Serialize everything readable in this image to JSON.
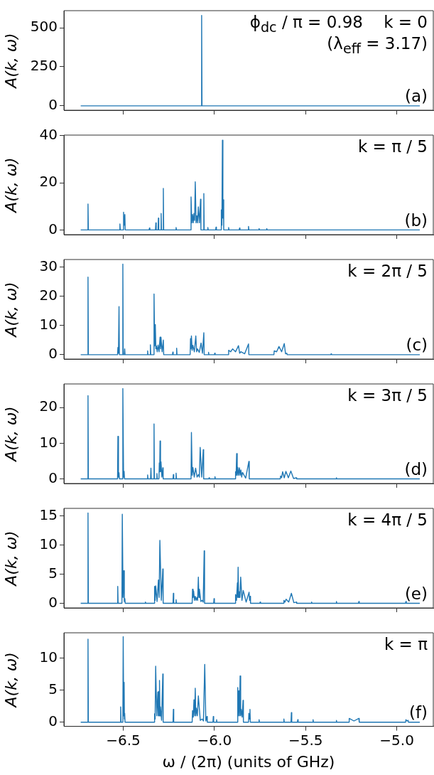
{
  "chart_data": [
    {
      "type": "line",
      "ylabel": "A(k, ω)",
      "annotations": [
        "ϕ$_{dc}$ / π = 0.98    k = 0",
        "(λ$_{eff}$ = 3.17)",
        "(a)"
      ],
      "xlim": [
        -6.825,
        -4.8
      ],
      "xticks": [
        {
          "value": -6.5,
          "label": null
        },
        {
          "value": -6.0,
          "label": null
        },
        {
          "value": -5.5,
          "label": null
        },
        {
          "value": -5.0,
          "label": null
        }
      ],
      "ylim": [
        -28,
        610
      ],
      "yticks": [
        0,
        250,
        500
      ],
      "tick_labels": "y",
      "grid": false,
      "legend": false,
      "marker": "none",
      "line_style": "solid",
      "series": [
        {
          "color": "#1f77b4",
          "x": [
            -6.733,
            -6.072,
            -6.07,
            -6.068,
            -4.874
          ],
          "values": [
            0,
            0,
            580,
            0,
            0
          ]
        }
      ]
    },
    {
      "type": "line",
      "ylabel": "A(k, ω)",
      "annotations": [
        "k = π / 5",
        "(b)"
      ],
      "xlim": [
        -6.825,
        -4.8
      ],
      "xticks": [
        {
          "value": -6.5,
          "label": null
        },
        {
          "value": -6.0,
          "label": null
        },
        {
          "value": -5.5,
          "label": null
        },
        {
          "value": -5.0,
          "label": null
        }
      ],
      "ylim": [
        -2,
        40.2
      ],
      "yticks": [
        0,
        20,
        40
      ],
      "tick_labels": "y",
      "grid": false,
      "legend": false,
      "marker": "none",
      "line_style": "solid",
      "series": [
        {
          "color": "#1f77b4",
          "x": [
            -6.733,
            -6.695,
            -6.693,
            -6.691,
            -6.52,
            -6.518,
            -6.516,
            -6.5,
            -6.498,
            -6.4945,
            -6.491,
            -6.489,
            -6.358,
            -6.356,
            -6.354,
            -6.323,
            -6.321,
            -6.319,
            -6.309,
            -6.307,
            -6.305,
            -6.294,
            -6.292,
            -6.29,
            -6.282,
            -6.28,
            -6.278,
            -6.212,
            -6.21,
            -6.208,
            -6.13,
            -6.128,
            -6.124,
            -6.12,
            -6.116,
            -6.112,
            -6.1085,
            -6.105,
            -6.1005,
            -6.096,
            -6.092,
            -6.088,
            -6.082,
            -6.076,
            -6.074,
            -6.06,
            -6.058,
            -6.056,
            -6.038,
            -6.036,
            -6.034,
            -5.993,
            -5.991,
            -5.989,
            -5.964,
            -5.962,
            -5.959,
            -5.956,
            -5.9535,
            -5.951,
            -5.949,
            -5.924,
            -5.922,
            -5.92,
            -5.864,
            -5.862,
            -5.86,
            -5.815,
            -5.813,
            -5.811,
            -5.757,
            -5.755,
            -5.753,
            -5.715,
            -5.713,
            -5.711,
            -4.874
          ],
          "values": [
            0,
            0,
            11,
            0,
            0,
            2.5,
            0,
            0,
            7.5,
            2,
            6.5,
            0,
            0,
            0.8,
            0,
            0,
            3,
            0,
            0,
            5,
            0,
            0,
            7,
            0,
            0,
            17.6,
            0,
            0,
            1,
            0,
            0,
            14,
            3,
            6.5,
            3,
            7,
            4,
            20.4,
            3,
            6,
            3,
            9.8,
            3,
            13,
            0,
            0,
            15.4,
            0,
            0,
            1,
            0,
            0,
            1.2,
            0,
            0,
            8.5,
            2,
            38,
            5,
            12.8,
            0,
            0,
            1,
            0,
            0,
            0.8,
            0,
            0,
            1.5,
            0,
            0,
            0.6,
            0,
            0,
            0.6,
            0,
            0
          ]
        }
      ]
    },
    {
      "type": "line",
      "ylabel": "A(k, ω)",
      "annotations": [
        "k = 2π / 5",
        "(c)"
      ],
      "xlim": [
        -6.825,
        -4.8
      ],
      "xticks": [
        {
          "value": -6.5,
          "label": null
        },
        {
          "value": -6.0,
          "label": null
        },
        {
          "value": -5.5,
          "label": null
        },
        {
          "value": -5.0,
          "label": null
        }
      ],
      "ylim": [
        -1.5,
        32.6
      ],
      "yticks": [
        0,
        10,
        20,
        30
      ],
      "tick_labels": "y",
      "grid": false,
      "legend": false,
      "marker": "none",
      "line_style": "solid",
      "series": [
        {
          "color": "#1f77b4",
          "x": [
            -6.733,
            -6.695,
            -6.693,
            -6.691,
            -6.531,
            -6.529,
            -6.526,
            -6.523,
            -6.521,
            -6.504,
            -6.502,
            -6.5,
            -6.494,
            -6.492,
            -6.49,
            -6.368,
            -6.366,
            -6.364,
            -6.353,
            -6.351,
            -6.349,
            -6.333,
            -6.331,
            -6.3275,
            -6.324,
            -6.321,
            -6.318,
            -6.3135,
            -6.309,
            -6.3035,
            -6.298,
            -6.2955,
            -6.293,
            -6.2865,
            -6.28,
            -6.278,
            -6.23,
            -6.228,
            -6.226,
            -6.209,
            -6.207,
            -6.205,
            -6.133,
            -6.131,
            -6.1285,
            -6.126,
            -6.122,
            -6.118,
            -6.11,
            -6.102,
            -6.0975,
            -6.093,
            -6.083,
            -6.073,
            -6.0655,
            -6.058,
            -6.056,
            -6.034,
            -6.032,
            -6.03,
            -6.0,
            -5.998,
            -5.996,
            -5.924,
            -5.922,
            -5.911,
            -5.9,
            -5.884,
            -5.868,
            -5.8615,
            -5.855,
            -5.834,
            -5.813,
            -5.811,
            -5.674,
            -5.672,
            -5.659,
            -5.646,
            -5.6315,
            -5.617,
            -5.61,
            -5.603,
            -5.601,
            -5.362,
            -5.36,
            -5.358,
            -4.874
          ],
          "values": [
            0,
            0,
            26.6,
            0,
            0,
            2.5,
            0.5,
            16.5,
            0,
            0,
            31,
            0,
            0,
            2,
            0,
            0,
            1.3,
            0,
            0,
            3.4,
            0,
            0,
            20.8,
            3,
            10.3,
            2,
            3,
            1,
            3.3,
            1,
            6,
            2,
            6,
            1,
            5,
            0,
            0,
            0.9,
            0,
            0,
            2.2,
            0,
            0,
            5.5,
            2,
            6.4,
            1.5,
            3.2,
            1,
            6.4,
            1,
            2,
            0.8,
            4,
            0.5,
            7.5,
            0,
            0,
            0.8,
            0,
            0,
            0.5,
            0,
            0,
            1.5,
            1,
            2,
            1,
            3.1,
            0.5,
            1,
            0.3,
            3.7,
            0,
            0,
            1.3,
            1,
            2.8,
            1,
            3.8,
            0.3,
            0.5,
            0,
            0,
            0.3,
            0,
            0
          ]
        }
      ]
    },
    {
      "type": "line",
      "ylabel": "A(k, ω)",
      "annotations": [
        "k = 3π / 5",
        "(d)"
      ],
      "xlim": [
        -6.825,
        -4.8
      ],
      "xticks": [
        {
          "value": -6.5,
          "label": null
        },
        {
          "value": -6.0,
          "label": null
        },
        {
          "value": -5.5,
          "label": null
        },
        {
          "value": -5.0,
          "label": null
        }
      ],
      "ylim": [
        -1.3,
        26.6
      ],
      "yticks": [
        0,
        10,
        20
      ],
      "tick_labels": "y",
      "grid": false,
      "legend": false,
      "marker": "none",
      "line_style": "solid",
      "series": [
        {
          "color": "#1f77b4",
          "x": [
            -6.733,
            -6.695,
            -6.693,
            -6.691,
            -6.531,
            -6.529,
            -6.526,
            -6.523,
            -6.521,
            -6.504,
            -6.502,
            -6.498,
            -6.495,
            -6.493,
            -6.368,
            -6.366,
            -6.364,
            -6.35,
            -6.348,
            -6.346,
            -6.333,
            -6.331,
            -6.329,
            -6.317,
            -6.315,
            -6.313,
            -6.304,
            -6.302,
            -6.3,
            -6.298,
            -6.2955,
            -6.293,
            -6.288,
            -6.283,
            -6.281,
            -6.227,
            -6.225,
            -6.223,
            -6.212,
            -6.21,
            -6.208,
            -6.128,
            -6.126,
            -6.122,
            -6.118,
            -6.1105,
            -6.103,
            -6.095,
            -6.087,
            -6.0825,
            -6.078,
            -6.0695,
            -6.061,
            -6.059,
            -6.031,
            -6.029,
            -6.027,
            -5.999,
            -5.997,
            -5.995,
            -5.886,
            -5.884,
            -5.881,
            -5.878,
            -5.875,
            -5.872,
            -5.8675,
            -5.863,
            -5.859,
            -5.855,
            -5.8505,
            -5.846,
            -5.8285,
            -5.811,
            -5.809,
            -5.639,
            -5.637,
            -5.6315,
            -5.626,
            -5.617,
            -5.608,
            -5.5945,
            -5.581,
            -5.566,
            -5.551,
            -5.549,
            -5.333,
            -5.331,
            -5.329,
            -4.874
          ],
          "values": [
            0,
            0,
            23.3,
            0,
            0,
            11.9,
            0.5,
            1.7,
            0,
            0,
            25.3,
            0.5,
            2.1,
            0,
            0,
            1.1,
            0,
            0,
            3,
            0,
            0,
            15.4,
            0,
            0,
            1.5,
            0,
            0,
            4.5,
            2,
            10.6,
            2,
            4.8,
            0.5,
            3.1,
            0,
            0,
            1.2,
            0,
            0,
            1.6,
            0,
            0,
            13,
            1,
            3.2,
            0.5,
            3,
            0.5,
            1.2,
            0.5,
            8.8,
            0.5,
            8.2,
            0,
            0,
            0.3,
            0,
            0,
            0.6,
            0,
            0,
            2,
            1,
            7.1,
            1,
            3.2,
            1,
            3.1,
            1,
            2.5,
            0.5,
            1.8,
            0.2,
            4.9,
            0,
            0,
            0.8,
            0.3,
            2,
            0.3,
            2.1,
            0.3,
            2.2,
            0.1,
            0.3,
            0,
            0,
            0.3,
            0,
            0
          ]
        }
      ]
    },
    {
      "type": "line",
      "ylabel": "A(k, ω)",
      "annotations": [
        "k = 4π / 5",
        "(e)"
      ],
      "xlim": [
        -6.825,
        -4.8
      ],
      "xticks": [
        {
          "value": -6.5,
          "label": null
        },
        {
          "value": -6.0,
          "label": null
        },
        {
          "value": -5.5,
          "label": null
        },
        {
          "value": -5.0,
          "label": null
        }
      ],
      "ylim": [
        -0.8,
        16.3
      ],
      "yticks": [
        0,
        5,
        10,
        15
      ],
      "tick_labels": "y",
      "grid": false,
      "legend": false,
      "marker": "none",
      "line_style": "solid",
      "series": [
        {
          "color": "#1f77b4",
          "x": [
            -6.733,
            -6.695,
            -6.693,
            -6.691,
            -6.532,
            -6.53,
            -6.528,
            -6.507,
            -6.505,
            -6.501,
            -6.497,
            -6.494,
            -6.491,
            -6.489,
            -6.38,
            -6.378,
            -6.376,
            -6.33,
            -6.328,
            -6.325,
            -6.322,
            -6.3145,
            -6.307,
            -6.303,
            -6.299,
            -6.291,
            -6.283,
            -6.281,
            -6.227,
            -6.225,
            -6.223,
            -6.212,
            -6.21,
            -6.208,
            -6.122,
            -6.12,
            -6.117,
            -6.114,
            -6.1095,
            -6.105,
            -6.1005,
            -6.096,
            -6.092,
            -6.088,
            -6.085,
            -6.082,
            -6.0745,
            -6.067,
            -6.0615,
            -6.056,
            -6.054,
            -6.004,
            -6.002,
            -6.0,
            -5.886,
            -5.884,
            -5.879,
            -5.874,
            -5.872,
            -5.87,
            -5.867,
            -5.864,
            -5.86,
            -5.856,
            -5.849,
            -5.842,
            -5.826,
            -5.81,
            -5.807,
            -5.804,
            -5.802,
            -5.751,
            -5.749,
            -5.747,
            -5.621,
            -5.619,
            -5.613,
            -5.607,
            -5.5925,
            -5.578,
            -5.5645,
            -5.551,
            -5.549,
            -5.469,
            -5.467,
            -5.465,
            -5.333,
            -5.331,
            -5.329,
            -5.21,
            -5.208,
            -5.206,
            -4.952,
            -4.95,
            -4.948,
            -4.874
          ],
          "values": [
            0,
            0,
            15.5,
            0,
            0,
            2.9,
            0,
            0,
            15.3,
            1,
            5.6,
            0.3,
            0.8,
            0,
            0,
            0.2,
            0,
            0,
            2.9,
            0.5,
            3,
            0.3,
            4,
            1,
            10.8,
            0.5,
            5.9,
            0,
            0,
            1.7,
            0,
            0,
            0.6,
            0,
            0,
            2.4,
            1,
            2.1,
            0.5,
            1.2,
            0.5,
            1,
            0.5,
            4.5,
            1,
            2.4,
            0.3,
            0.5,
            0.2,
            9,
            0,
            0,
            0.8,
            0,
            0,
            1.5,
            0.5,
            3.5,
            1,
            6.2,
            1,
            2,
            1,
            4.5,
            0.5,
            2.2,
            0.2,
            1.9,
            0.5,
            1.2,
            0,
            0,
            0.2,
            0,
            0,
            0.5,
            0.2,
            0.7,
            0.2,
            1.7,
            0.1,
            0.2,
            0,
            0,
            0.2,
            0,
            0,
            0.3,
            0,
            0,
            0.3,
            0,
            0,
            0.3,
            0,
            0
          ]
        }
      ]
    },
    {
      "type": "line",
      "xlabel": "ω / (2π) (units of GHz)",
      "ylabel": "A(k, ω)",
      "annotations": [
        "k = π",
        "(f)"
      ],
      "xlim": [
        -6.825,
        -4.8
      ],
      "xticks": [
        {
          "value": -6.5,
          "label": "−6.5"
        },
        {
          "value": -6.0,
          "label": "−6.0"
        },
        {
          "value": -5.5,
          "label": "−5.5"
        },
        {
          "value": -5.0,
          "label": "−5.0"
        }
      ],
      "ylim": [
        -0.64,
        13.9
      ],
      "yticks": [
        0,
        5,
        10
      ],
      "grid": false,
      "legend": false,
      "marker": "none",
      "line_style": "solid",
      "series": [
        {
          "color": "#1f77b4",
          "x": [
            -6.733,
            -6.695,
            -6.693,
            -6.691,
            -6.516,
            -6.514,
            -6.512,
            -6.502,
            -6.5,
            -6.4975,
            -6.495,
            -6.4935,
            -6.492,
            -6.49,
            -6.33,
            -6.328,
            -6.325,
            -6.322,
            -6.316,
            -6.31,
            -6.3075,
            -6.305,
            -6.303,
            -6.301,
            -6.2985,
            -6.296,
            -6.2895,
            -6.283,
            -6.281,
            -6.227,
            -6.225,
            -6.223,
            -6.122,
            -6.12,
            -6.116,
            -6.112,
            -6.1085,
            -6.105,
            -6.102,
            -6.099,
            -6.0935,
            -6.088,
            -6.0775,
            -6.067,
            -6.06,
            -6.053,
            -6.047,
            -6.041,
            -6.039,
            -6.008,
            -6.006,
            -6.004,
            -5.99,
            -5.988,
            -5.986,
            -5.874,
            -5.872,
            -5.869,
            -5.866,
            -5.8625,
            -5.859,
            -5.856,
            -5.853,
            -5.848,
            -5.843,
            -5.841,
            -5.813,
            -5.811,
            -5.808,
            -5.805,
            -5.803,
            -5.757,
            -5.755,
            -5.753,
            -5.621,
            -5.619,
            -5.617,
            -5.58,
            -5.578,
            -5.576,
            -5.545,
            -5.543,
            -5.541,
            -5.461,
            -5.459,
            -5.457,
            -5.333,
            -5.331,
            -5.329,
            -5.263,
            -5.261,
            -5.235,
            -5.208,
            -5.206,
            -4.952,
            -4.95,
            -4.944,
            -4.938,
            -4.936,
            -4.874
          ],
          "values": [
            0,
            0,
            12.9,
            0,
            0,
            2.4,
            0,
            0,
            13.3,
            1,
            6.2,
            0.5,
            1.4,
            0,
            0,
            1.3,
            0.5,
            8.7,
            1,
            4.7,
            1,
            4.8,
            1,
            6.5,
            1,
            2.4,
            0.3,
            7.5,
            0,
            0,
            2,
            0,
            0,
            1.8,
            0.8,
            3.5,
            1,
            5.3,
            1,
            2.2,
            1,
            4.1,
            0.3,
            0.5,
            0.2,
            9,
            0.2,
            0.9,
            0,
            0,
            0.9,
            0,
            0,
            0.4,
            0,
            0,
            5.4,
            1,
            4.9,
            1,
            7.2,
            1,
            2,
            0.8,
            3.4,
            0,
            0,
            1.4,
            0.5,
            2,
            0,
            0,
            0.4,
            0,
            0,
            0.5,
            0,
            0,
            1.5,
            0,
            0,
            0.4,
            0,
            0,
            0.4,
            0,
            0,
            0.3,
            0,
            0,
            0.6,
            0.2,
            0.6,
            0,
            0,
            0.4,
            0.2,
            0.3,
            0,
            0
          ]
        }
      ]
    }
  ]
}
